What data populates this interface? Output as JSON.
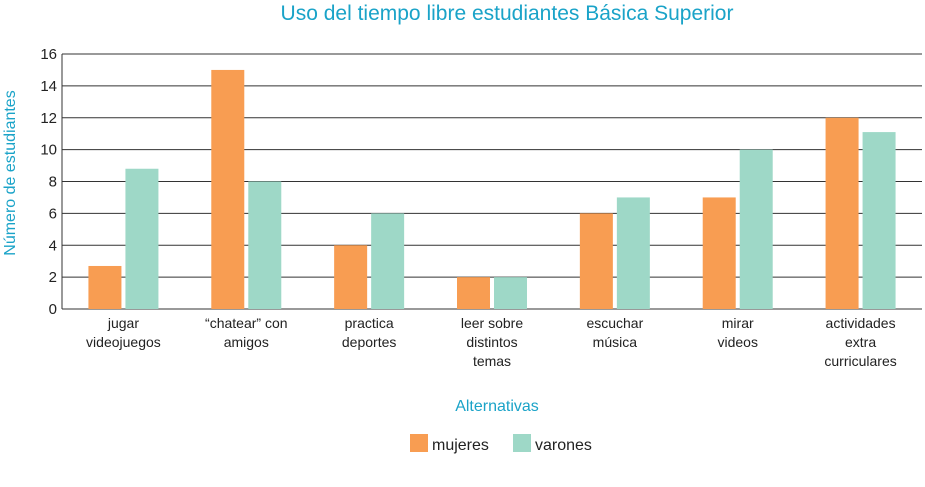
{
  "chart_data": {
    "type": "bar",
    "title": "Uso del tiempo libre estudiantes Básica Superior",
    "xlabel": "Alternativas",
    "ylabel": "Número de estudiantes",
    "ylim": [
      0,
      16
    ],
    "yticks": [
      "0",
      "2",
      "4",
      "6",
      "8",
      "10",
      "12",
      "14",
      "16"
    ],
    "grid": true,
    "legend_position": "bottom-center",
    "categories": [
      [
        "jugar",
        "videojuegos"
      ],
      [
        "“chatear” con",
        "amigos"
      ],
      [
        "practica",
        "deportes"
      ],
      [
        "leer sobre",
        "distintos",
        "temas"
      ],
      [
        "escuchar",
        "música"
      ],
      [
        "mirar",
        "videos"
      ],
      [
        "actividades",
        "extra",
        "curriculares"
      ]
    ],
    "series": [
      {
        "name": "mujeres",
        "color": "#f89d52",
        "values": [
          2.7,
          15,
          4,
          2,
          6,
          7,
          12
        ]
      },
      {
        "name": "varones",
        "color": "#9ed8c7",
        "values": [
          8.8,
          8,
          6,
          2,
          7,
          10,
          11.1
        ]
      }
    ]
  }
}
